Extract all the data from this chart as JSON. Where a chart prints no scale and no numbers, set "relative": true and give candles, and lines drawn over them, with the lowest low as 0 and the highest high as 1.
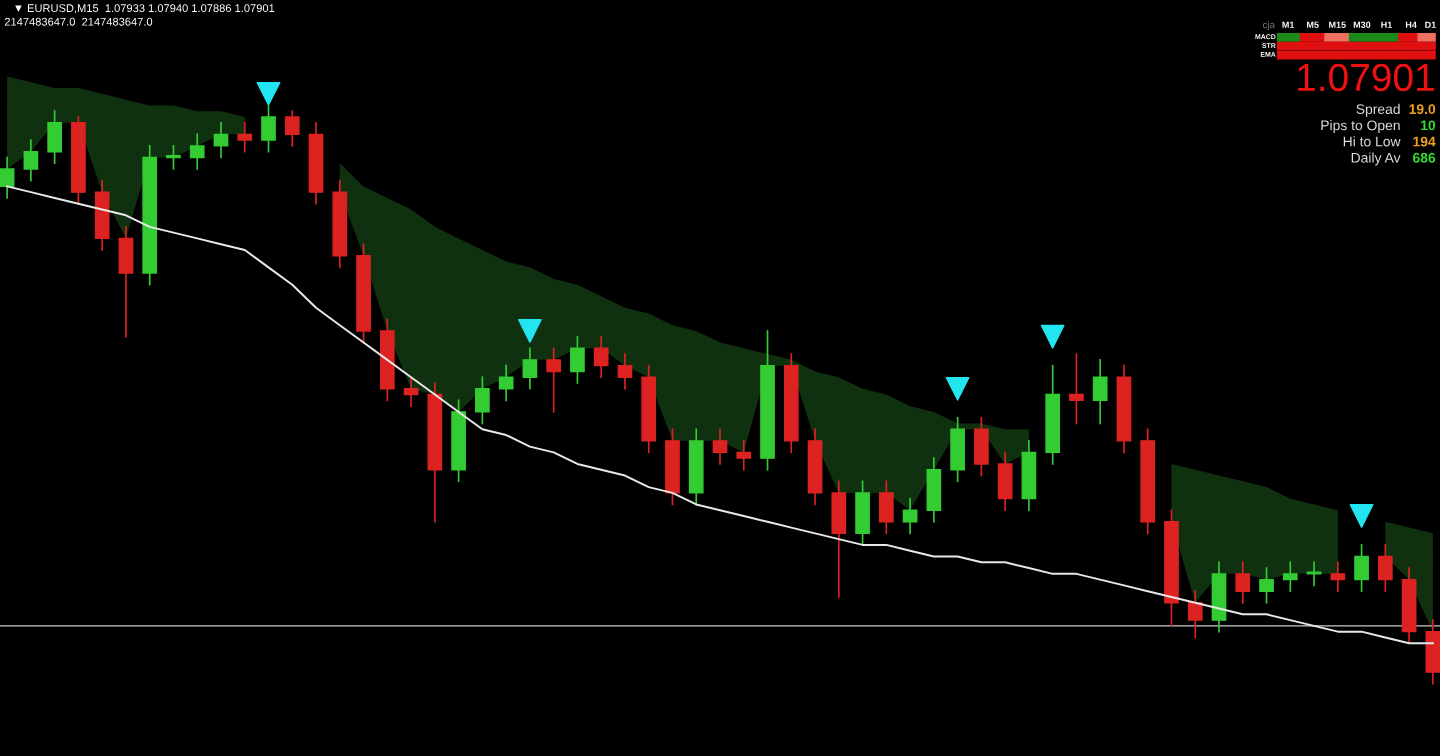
{
  "chart_data": [
    {
      "type": "candlestick",
      "relative": true,
      "title": "▼ EURUSD,M15  1.07933 1.07940 1.07886 1.07901",
      "subtitle": "2147483647.0  2147483647.0",
      "grid": false,
      "legend": false,
      "categories": [
        null,
        null,
        null,
        null,
        null,
        null,
        null,
        null,
        null,
        null,
        null,
        null,
        null,
        null,
        null,
        null,
        null,
        null,
        null,
        null,
        null,
        null,
        null,
        null,
        null,
        null,
        null,
        null,
        null,
        null,
        null,
        null,
        null,
        null,
        null,
        null,
        null,
        null,
        null,
        null,
        null,
        null,
        null,
        null,
        null,
        null,
        null,
        null,
        null,
        null,
        null,
        null,
        null,
        null,
        null,
        null,
        null,
        null,
        null,
        null,
        null
      ],
      "ohlc": [
        [
          0.86,
          0.91,
          0.84,
          0.89
        ],
        [
          0.89,
          0.94,
          0.87,
          0.92
        ],
        [
          0.92,
          0.99,
          0.9,
          0.97
        ],
        [
          0.97,
          0.98,
          0.83,
          0.85
        ],
        [
          0.85,
          0.87,
          0.75,
          0.77
        ],
        [
          0.77,
          0.79,
          0.6,
          0.71
        ],
        [
          0.71,
          0.93,
          0.69,
          0.91
        ],
        [
          0.91,
          0.93,
          0.89,
          0.91
        ],
        [
          0.91,
          0.95,
          0.89,
          0.93
        ],
        [
          0.93,
          0.97,
          0.91,
          0.95
        ],
        [
          0.95,
          0.97,
          0.92,
          0.94
        ],
        [
          0.94,
          1.0,
          0.92,
          0.98
        ],
        [
          0.98,
          0.99,
          0.93,
          0.95
        ],
        [
          0.95,
          0.97,
          0.83,
          0.85
        ],
        [
          0.85,
          0.87,
          0.72,
          0.74
        ],
        [
          0.74,
          0.76,
          0.59,
          0.61
        ],
        [
          0.61,
          0.63,
          0.49,
          0.51
        ],
        [
          0.51,
          0.53,
          0.48,
          0.5
        ],
        [
          0.5,
          0.52,
          0.28,
          0.37
        ],
        [
          0.37,
          0.49,
          0.35,
          0.47
        ],
        [
          0.47,
          0.53,
          0.45,
          0.51
        ],
        [
          0.51,
          0.55,
          0.49,
          0.53
        ],
        [
          0.53,
          0.58,
          0.51,
          0.56
        ],
        [
          0.56,
          0.58,
          0.47,
          0.54
        ],
        [
          0.54,
          0.6,
          0.52,
          0.58
        ],
        [
          0.58,
          0.6,
          0.53,
          0.55
        ],
        [
          0.55,
          0.57,
          0.51,
          0.53
        ],
        [
          0.53,
          0.55,
          0.4,
          0.42
        ],
        [
          0.42,
          0.44,
          0.31,
          0.33
        ],
        [
          0.33,
          0.44,
          0.31,
          0.42
        ],
        [
          0.42,
          0.44,
          0.38,
          0.4
        ],
        [
          0.4,
          0.42,
          0.37,
          0.39
        ],
        [
          0.39,
          0.61,
          0.37,
          0.55
        ],
        [
          0.55,
          0.57,
          0.4,
          0.42
        ],
        [
          0.42,
          0.44,
          0.31,
          0.33
        ],
        [
          0.33,
          0.35,
          0.15,
          0.26
        ],
        [
          0.26,
          0.35,
          0.24,
          0.33
        ],
        [
          0.33,
          0.35,
          0.26,
          0.28
        ],
        [
          0.28,
          0.32,
          0.26,
          0.3
        ],
        [
          0.3,
          0.39,
          0.28,
          0.37
        ],
        [
          0.37,
          0.46,
          0.35,
          0.44
        ],
        [
          0.44,
          0.46,
          0.36,
          0.38
        ],
        [
          0.38,
          0.4,
          0.3,
          0.32
        ],
        [
          0.32,
          0.42,
          0.3,
          0.4
        ],
        [
          0.4,
          0.55,
          0.38,
          0.5
        ],
        [
          0.5,
          0.57,
          0.45,
          0.49
        ],
        [
          0.49,
          0.56,
          0.45,
          0.53
        ],
        [
          0.53,
          0.55,
          0.4,
          0.42
        ],
        [
          0.42,
          0.44,
          0.26,
          0.28
        ],
        [
          0.28,
          0.3,
          0.1,
          0.14
        ],
        [
          0.14,
          0.16,
          0.08,
          0.11
        ],
        [
          0.11,
          0.21,
          0.09,
          0.19
        ],
        [
          0.19,
          0.21,
          0.14,
          0.16
        ],
        [
          0.16,
          0.2,
          0.14,
          0.18
        ],
        [
          0.18,
          0.21,
          0.16,
          0.19
        ],
        [
          0.19,
          0.21,
          0.17,
          0.19
        ],
        [
          0.19,
          0.21,
          0.16,
          0.18
        ],
        [
          0.18,
          0.24,
          0.16,
          0.22
        ],
        [
          0.22,
          0.24,
          0.16,
          0.18
        ],
        [
          0.18,
          0.2,
          0.07,
          0.09
        ],
        [
          0.09,
          0.11,
          0.0,
          0.02
        ]
      ],
      "colors": [
        "#33cc33",
        "#33cc33",
        "#33cc33",
        "#dd2222",
        "#dd2222",
        "#dd2222",
        "#33cc33",
        "#33cc33",
        "#33cc33",
        "#33cc33",
        "#dd2222",
        "#33cc33",
        "#dd2222",
        "#dd2222",
        "#dd2222",
        "#dd2222",
        "#dd2222",
        "#dd2222",
        "#dd2222",
        "#33cc33",
        "#33cc33",
        "#33cc33",
        "#33cc33",
        "#dd2222",
        "#33cc33",
        "#dd2222",
        "#dd2222",
        "#dd2222",
        "#dd2222",
        "#33cc33",
        "#dd2222",
        "#dd2222",
        "#33cc33",
        "#dd2222",
        "#dd2222",
        "#dd2222",
        "#33cc33",
        "#dd2222",
        "#33cc33",
        "#33cc33",
        "#33cc33",
        "#dd2222",
        "#dd2222",
        "#33cc33",
        "#33cc33",
        "#dd2222",
        "#33cc33",
        "#dd2222",
        "#dd2222",
        "#dd2222",
        "#dd2222",
        "#33cc33",
        "#dd2222",
        "#33cc33",
        "#33cc33",
        "#33cc33",
        "#dd2222",
        "#33cc33",
        "#dd2222",
        "#dd2222",
        "#dd2222"
      ],
      "series": [
        {
          "type": "area",
          "color": "#2e8b2e",
          "values": [
            1.05,
            1.04,
            1.03,
            1.03,
            1.02,
            1.01,
            1.0,
            1.0,
            0.99,
            0.99,
            0.98,
            null,
            null,
            null,
            0.9,
            0.86,
            0.84,
            0.82,
            0.79,
            0.77,
            0.75,
            0.73,
            0.72,
            0.7,
            0.69,
            0.67,
            0.65,
            0.64,
            0.62,
            0.61,
            0.59,
            0.58,
            0.57,
            0.56,
            0.54,
            0.53,
            0.51,
            0.5,
            0.48,
            0.47,
            0.45,
            0.45,
            0.44,
            0.44,
            null,
            null,
            null,
            null,
            null,
            0.38,
            0.37,
            0.36,
            0.35,
            0.34,
            0.32,
            0.31,
            0.3,
            null,
            0.28,
            0.27,
            0.26
          ]
        },
        {
          "type": "line",
          "color": "#e8e8e8",
          "marker": "none",
          "line_style": "solid",
          "values": [
            0.86,
            0.85,
            0.84,
            0.83,
            0.82,
            0.81,
            0.79,
            0.78,
            0.77,
            0.76,
            0.75,
            0.72,
            0.69,
            0.65,
            0.62,
            0.59,
            0.56,
            0.53,
            0.5,
            0.47,
            0.44,
            0.43,
            0.41,
            0.4,
            0.38,
            0.37,
            0.36,
            0.34,
            0.33,
            0.31,
            0.3,
            0.29,
            0.28,
            0.27,
            0.26,
            0.25,
            0.24,
            0.24,
            0.23,
            0.22,
            0.22,
            0.21,
            0.21,
            0.2,
            0.19,
            0.19,
            0.18,
            0.17,
            0.16,
            0.15,
            0.14,
            0.13,
            0.12,
            0.12,
            0.11,
            0.1,
            0.09,
            0.09,
            0.08,
            0.07,
            0.07
          ]
        },
        {
          "type": "scatter",
          "color": "#22e5f0",
          "marker": "triangle",
          "values": [
            null,
            null,
            null,
            null,
            null,
            null,
            null,
            null,
            null,
            null,
            null,
            1.02,
            null,
            null,
            null,
            null,
            null,
            null,
            null,
            null,
            null,
            null,
            0.61,
            null,
            null,
            null,
            null,
            null,
            null,
            null,
            null,
            null,
            null,
            null,
            null,
            null,
            null,
            null,
            null,
            null,
            0.51,
            null,
            null,
            null,
            0.6,
            null,
            null,
            null,
            null,
            null,
            null,
            null,
            null,
            null,
            null,
            null,
            null,
            0.29,
            null,
            null,
            null
          ]
        }
      ],
      "ref_lines": [
        {
          "axis": "y",
          "value": 0.1,
          "color": "#c8c8c8",
          "line_style": "solid"
        }
      ]
    },
    {
      "type": "other",
      "annotations": [
        "cja",
        "M1",
        "M5",
        "M15",
        "M30",
        "H1",
        "H4",
        "D1",
        "MACD",
        "STR",
        "EMA",
        "1.07901",
        "Spread",
        "19.0",
        "Pips to Open",
        "10",
        "Hi to Low",
        "194",
        "Daily Av",
        "686"
      ]
    }
  ]
}
